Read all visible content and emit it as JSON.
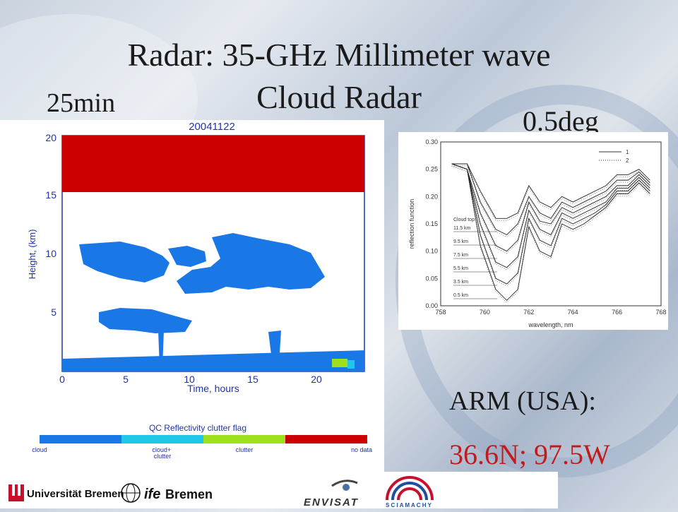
{
  "slide": {
    "title_line1": "Radar: 35-GHz Millimeter wave",
    "title_line2": "Cloud Radar",
    "label_time": "25min",
    "label_angle": "0.5deg",
    "site_label": "ARM (USA):",
    "site_coords": "36.6N; 97.5W"
  },
  "radar_plot": {
    "title": "20041122",
    "ylabel": "Height, (km)",
    "xlabel": "Time, hours",
    "x_ticks": [
      "0",
      "5",
      "10",
      "15",
      "20"
    ],
    "y_ticks": [
      "5",
      "10",
      "15",
      "20"
    ],
    "legend_title": "QC Reflectivity clutter flag",
    "legend_items": [
      "cloud",
      "cloud+\nclutter",
      "clutter",
      "no data"
    ],
    "colors": {
      "no_data": "#cc0000",
      "cloud": "#1a78e6",
      "cloud_clutter": "#21c7e6",
      "clutter": "#9ee01e"
    }
  },
  "chart_data": {
    "type": "line",
    "xlabel": "wavelength, nm",
    "ylabel": "reflection function",
    "xlim": [
      758,
      768
    ],
    "ylim": [
      0,
      0.3
    ],
    "x_ticks": [
      "758",
      "760",
      "762",
      "764",
      "766",
      "768"
    ],
    "y_ticks": [
      "0.00",
      "0.05",
      "0.10",
      "0.15",
      "0.20",
      "0.25",
      "0.30"
    ],
    "legend": [
      "1",
      "2"
    ],
    "annotation_header": "Cloud top",
    "cloud_top_labels": [
      "11.5 km",
      "9.5 km",
      "7.5 km",
      "5.5 km",
      "3.5 km",
      "0.5 km"
    ],
    "x": [
      758.5,
      759.2,
      759.8,
      760.5,
      761.0,
      761.5,
      762.0,
      762.5,
      763.0,
      763.5,
      764.0,
      764.5,
      765.0,
      765.5,
      766.0,
      766.5,
      767.0,
      767.5
    ],
    "series": [
      {
        "values": [
          0.26,
          0.26,
          0.21,
          0.16,
          0.16,
          0.17,
          0.22,
          0.19,
          0.18,
          0.2,
          0.19,
          0.2,
          0.21,
          0.22,
          0.24,
          0.24,
          0.25,
          0.23
        ]
      },
      {
        "values": [
          0.26,
          0.26,
          0.19,
          0.14,
          0.13,
          0.15,
          0.2,
          0.17,
          0.16,
          0.19,
          0.18,
          0.19,
          0.2,
          0.21,
          0.23,
          0.23,
          0.245,
          0.225
        ]
      },
      {
        "values": [
          0.26,
          0.25,
          0.17,
          0.11,
          0.1,
          0.12,
          0.19,
          0.155,
          0.15,
          0.18,
          0.17,
          0.18,
          0.19,
          0.2,
          0.22,
          0.22,
          0.24,
          0.22
        ]
      },
      {
        "values": [
          0.26,
          0.25,
          0.15,
          0.08,
          0.07,
          0.09,
          0.175,
          0.14,
          0.13,
          0.17,
          0.16,
          0.17,
          0.18,
          0.19,
          0.215,
          0.215,
          0.235,
          0.215
        ]
      },
      {
        "values": [
          0.26,
          0.25,
          0.13,
          0.05,
          0.04,
          0.06,
          0.16,
          0.12,
          0.11,
          0.16,
          0.15,
          0.16,
          0.17,
          0.185,
          0.21,
          0.21,
          0.23,
          0.21
        ]
      },
      {
        "values": [
          0.26,
          0.25,
          0.11,
          0.03,
          0.01,
          0.03,
          0.145,
          0.1,
          0.09,
          0.15,
          0.14,
          0.15,
          0.165,
          0.18,
          0.205,
          0.205,
          0.225,
          0.205
        ]
      }
    ]
  },
  "logos": {
    "uni_bremen": "Universität Bremen",
    "ife_bremen_1": "ife",
    "ife_bremen_2": "Bremen",
    "envisat": "ENVISAT",
    "sciamachy": "S C I A M A C H Y"
  }
}
